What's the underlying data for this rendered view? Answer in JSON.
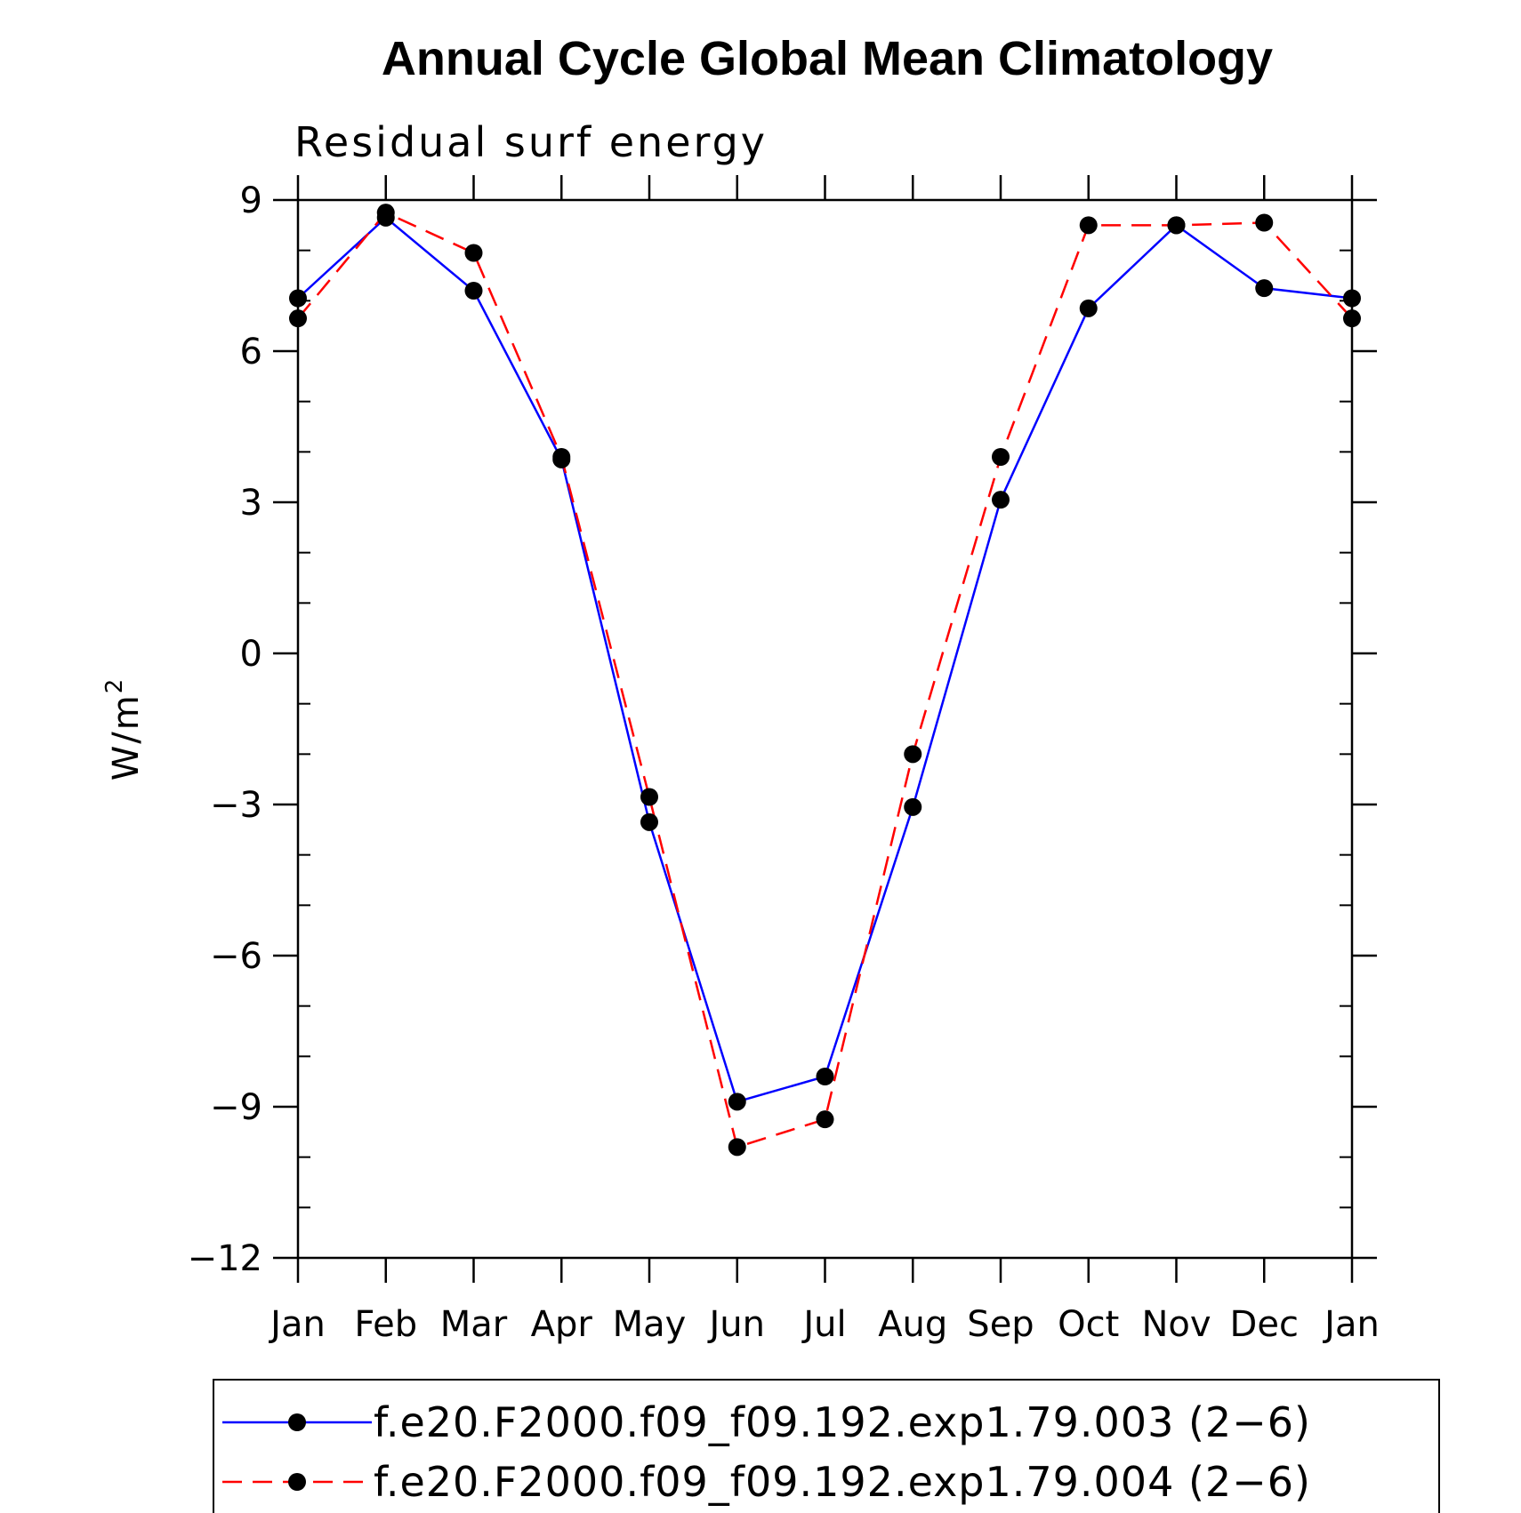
{
  "chart_data": {
    "type": "line",
    "title": "Annual Cycle Global Mean Climatology",
    "subtitle": "Residual surf energy",
    "ylabel": "W/m",
    "ylabel_superscript": "2",
    "xlabel": "",
    "categories": [
      "Jan",
      "Feb",
      "Mar",
      "Apr",
      "May",
      "Jun",
      "Jul",
      "Aug",
      "Sep",
      "Oct",
      "Nov",
      "Dec",
      "Jan"
    ],
    "y_ticks": [
      9,
      6,
      3,
      0,
      -3,
      -6,
      -9,
      -12
    ],
    "y_tick_labels": [
      "9",
      "6",
      "3",
      "0",
      "−3",
      "−6",
      "−9",
      "−12"
    ],
    "ylim": [
      -12,
      9
    ],
    "grid": false,
    "legend_position": "bottom",
    "series": [
      {
        "name": "f.e20.F2000.f09_f09.192.exp1.79.003 (2−6)",
        "color": "#0000ff",
        "dash": "solid",
        "marker": "filled-circle",
        "values": [
          7.05,
          8.65,
          7.2,
          3.85,
          -3.35,
          -8.9,
          -8.4,
          -3.05,
          3.05,
          6.85,
          8.5,
          7.25,
          7.05
        ]
      },
      {
        "name": "f.e20.F2000.f09_f09.192.exp1.79.004 (2−6)",
        "color": "#ff0000",
        "dash": "dashed",
        "marker": "filled-circle",
        "values": [
          6.65,
          8.75,
          7.95,
          3.9,
          -2.85,
          -9.8,
          -9.25,
          -2.0,
          3.9,
          8.5,
          8.5,
          8.55,
          6.65
        ]
      }
    ]
  }
}
